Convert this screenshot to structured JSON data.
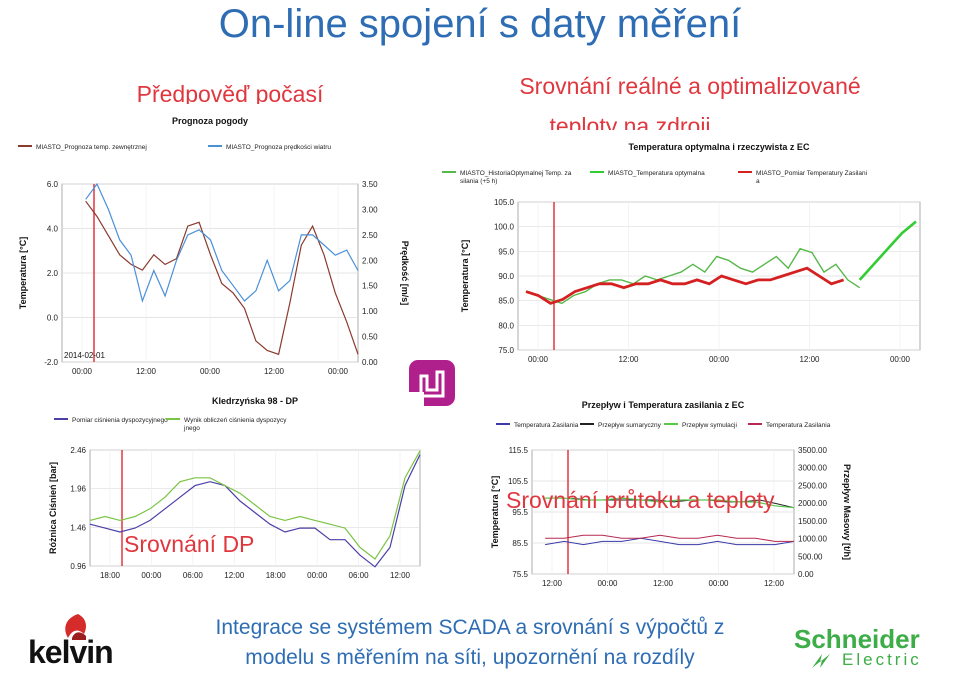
{
  "slide": {
    "title": "On-line spojení s daty měření",
    "caption_weather": "Předpověď počasí",
    "caption_compare_line1": "Srovnání reálné a optimalizované",
    "caption_compare_line2": "teploty na zdroji",
    "caption_dp": "Srovnání DP",
    "caption_flow": "Srovnání průtoku a teploty",
    "bottom_line1": "Integrace se systémem SCADA a srovnání s výpočtů z",
    "bottom_line2": "modelu s měřením na síti, upozornění na rozdíly",
    "logo_left": "kelvin",
    "logo_right_1": "Schneider",
    "logo_right_2": "Electric"
  },
  "colors": {
    "accent_blue": "#2e6db4",
    "accent_red": "#e0373f",
    "schneider_green": "#3dad47"
  },
  "chart_data": [
    {
      "type": "line",
      "title": "Prognoza pogody",
      "series": [
        {
          "name": "MIASTO_Prognoza temp. zewnętrznej",
          "color": "#8b3a2e",
          "values": [
            5.8,
            5.0,
            4.0,
            3.0,
            2.5,
            2.2,
            3.0,
            2.5,
            2.8,
            4.5,
            4.7,
            3.0,
            1.5,
            1.0,
            0.2,
            -1.5,
            -2.0,
            -2.2,
            0.5,
            3.5,
            4.5,
            3.0,
            1.0,
            -0.5,
            -2.2
          ]
        },
        {
          "name": "MIASTO_Prognoza prędkości wiatru",
          "color": "#4a90d9",
          "values": [
            3.2,
            3.5,
            3.0,
            2.4,
            2.1,
            1.2,
            1.8,
            1.3,
            2.0,
            2.5,
            2.6,
            2.4,
            1.8,
            1.5,
            1.2,
            1.4,
            2.0,
            1.4,
            1.6,
            2.5,
            2.5,
            2.3,
            2.1,
            2.2,
            1.8
          ]
        }
      ],
      "y_left": {
        "label": "Temperatura [°C]",
        "ticks": [
          "6.0",
          "4.0",
          "2.0",
          "0.0",
          "-2.0"
        ]
      },
      "y_right": {
        "label": "Prędkość [m/s]",
        "ticks": [
          "3.50",
          "3.00",
          "2.50",
          "2.00",
          "1.50",
          "1.00",
          "0.50",
          "0.00"
        ]
      },
      "x_ticks": [
        "00:00",
        "12:00",
        "00:00",
        "12:00",
        "00:00"
      ],
      "date_label": "2014-02-01"
    },
    {
      "type": "line",
      "title": "Temperatura optymalna i rzeczywista z EC",
      "series": [
        {
          "name": "MIASTO_HistoriaOptymalnej Temp. zasilania (+5 h)",
          "color": "#56b84a",
          "values": [
            85,
            84,
            83,
            82,
            84,
            85,
            87,
            88,
            88,
            87,
            89,
            88,
            89,
            90,
            92,
            90,
            94,
            93,
            91,
            90,
            92,
            94,
            91,
            96,
            95,
            90,
            92,
            88,
            86
          ]
        },
        {
          "name": "MIASTO_Temperatura optymalna",
          "color": "#33cc33",
          "values": [
            88,
            92,
            96,
            100,
            103
          ]
        },
        {
          "name": "MIASTO_Pomiar Temperatury Zasilania",
          "color": "#d42020",
          "values": [
            85,
            84,
            82,
            83,
            85,
            86,
            87,
            87,
            86,
            87,
            87,
            88,
            87,
            87,
            88,
            87,
            89,
            88,
            87,
            88,
            88,
            89,
            90,
            91,
            89,
            87,
            88
          ]
        }
      ],
      "y_left": {
        "label": "Temperatura [°C]",
        "ticks": [
          "105.0",
          "100.0",
          "95.0",
          "90.0",
          "85.0",
          "80.0",
          "75.0"
        ]
      },
      "x_ticks": [
        "00:00",
        "12:00",
        "00:00",
        "12:00",
        "00:00"
      ]
    },
    {
      "type": "line",
      "title": "Kledrzyńska 98 - DP",
      "series": [
        {
          "name": "Pomiar ciśnienia dyspozycyjnego",
          "color": "#4b3fa8",
          "values": [
            1.5,
            1.45,
            1.4,
            1.45,
            1.55,
            1.7,
            1.85,
            2.0,
            2.05,
            2.0,
            1.8,
            1.65,
            1.5,
            1.4,
            1.45,
            1.45,
            1.3,
            1.3,
            1.1,
            0.95,
            1.2,
            2.0,
            2.4
          ]
        },
        {
          "name": "Wynik obliczeń ciśnienia dyspozycyjnego",
          "color": "#7ac443",
          "values": [
            1.55,
            1.6,
            1.55,
            1.6,
            1.7,
            1.85,
            2.05,
            2.1,
            2.1,
            2.0,
            1.9,
            1.75,
            1.6,
            1.55,
            1.6,
            1.55,
            1.5,
            1.45,
            1.2,
            1.05,
            1.35,
            2.1,
            2.45
          ]
        }
      ],
      "y_left": {
        "label": "Różnica Ciśnień [bar]",
        "ticks": [
          "2.46",
          "1.96",
          "1.46",
          "0.96"
        ]
      },
      "x_ticks": [
        "18:00",
        "00:00",
        "06:00",
        "12:00",
        "18:00",
        "00:00",
        "06:00",
        "12:00"
      ]
    },
    {
      "type": "line",
      "title": "Przepływ i Temperatura zasilania z EC",
      "series": [
        {
          "name": "Temperatura Zasilania",
          "color": "#3a3aaa",
          "values": [
            85,
            86,
            85,
            86,
            86,
            87,
            86,
            85,
            85,
            86,
            85,
            85,
            85,
            86
          ]
        },
        {
          "name": "Przepływ sumaryczny",
          "color": "#222222",
          "values": [
            115,
            114,
            114,
            114,
            114,
            114,
            113,
            114,
            114,
            113,
            113,
            114,
            112,
            110
          ]
        },
        {
          "name": "Przepływ symulacji",
          "color": "#56c74a",
          "values": [
            115,
            115,
            114,
            114,
            115,
            114,
            113,
            114,
            114,
            114,
            113,
            113,
            111,
            110
          ]
        },
        {
          "name": "Temperatura Zasilania",
          "color": "#b82850",
          "values": [
            87,
            87,
            88,
            88,
            87,
            87,
            88,
            87,
            87,
            88,
            87,
            87,
            86,
            86
          ]
        }
      ],
      "y_left": {
        "label": "Temperatura [°C]",
        "ticks": [
          "115.5",
          "105.5",
          "95.5",
          "85.5",
          "75.5"
        ]
      },
      "y_right": {
        "label": "Przepływ Masowy [t/h]",
        "ticks": [
          "3500.00",
          "3000.00",
          "2500.00",
          "2000.00",
          "1500.00",
          "1000.00",
          "500.00",
          "0.00"
        ]
      },
      "x_ticks": [
        "12:00",
        "00:00",
        "12:00",
        "00:00",
        "12:00"
      ]
    }
  ]
}
